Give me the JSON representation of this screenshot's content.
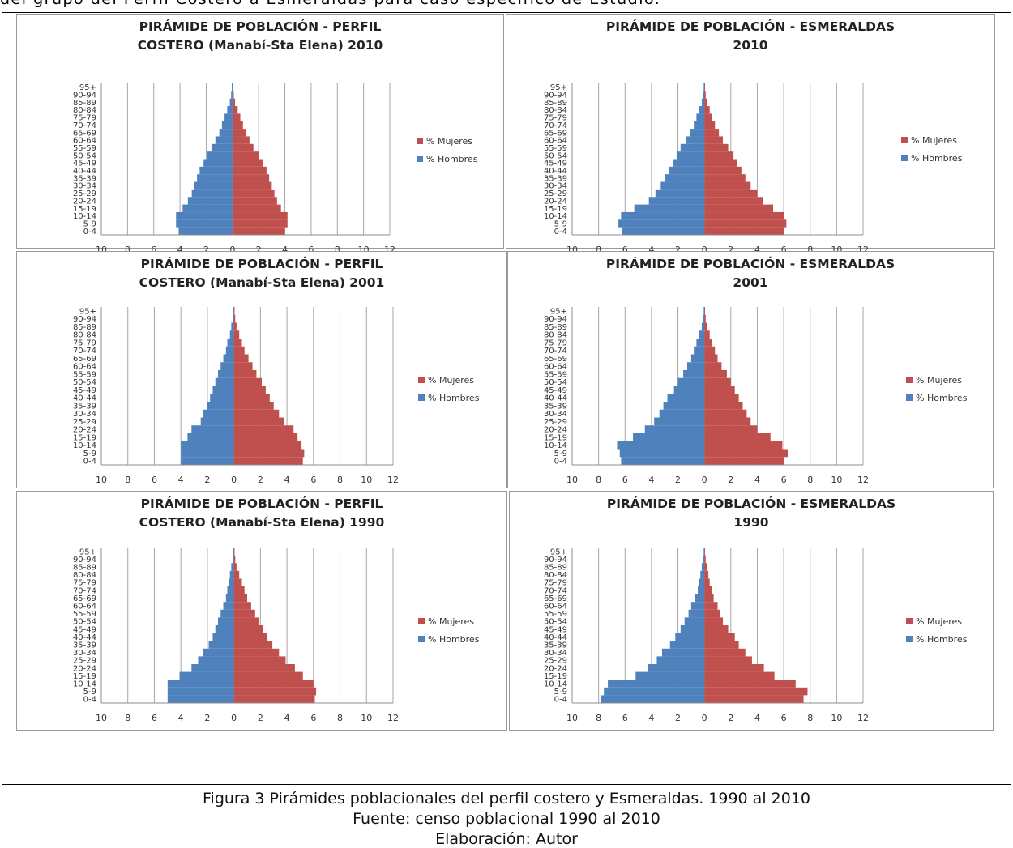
{
  "header_fragment": "del grupo del Perfil Costero a Esmeraldas para caso específico de Estudio.",
  "caption": {
    "figure": "Figura 3 Pirámides poblacionales del perfil costero y Esmeraldas. 1990 al 2010",
    "source": "Fuente: censo poblacional 1990 al 2010",
    "author": "Elaboración: Autor"
  },
  "colors": {
    "mujeres": "#c0504d",
    "hombres": "#4f81bd",
    "grid": "#a6a6a6"
  },
  "chart_data": [
    {
      "type": "bar",
      "title_line1": "PIRÁMIDE DE POBLACIÓN  -  PERFIL",
      "title_line2": "COSTERO (Manabí-Sta Elena) 2010",
      "categories": [
        "0-4",
        "5-9",
        "10-14",
        "15-19",
        "20-24",
        "25-29",
        "30-34",
        "35-39",
        "40-44",
        "45-49",
        "50-54",
        "55-59",
        "60-64",
        "65-69",
        "70-74",
        "75-79",
        "80-84",
        "85-89",
        "90-94",
        "95+"
      ],
      "x_ticks": [
        "10",
        "8",
        "6",
        "4",
        "2",
        "0",
        "2",
        "4",
        "6",
        "8",
        "10",
        "12"
      ],
      "xlim": [
        -10,
        12
      ],
      "grid": true,
      "legend_position": "right",
      "series": [
        {
          "name": "% Mujeres",
          "values": [
            4.0,
            4.2,
            4.2,
            3.7,
            3.4,
            3.2,
            3.0,
            2.8,
            2.6,
            2.3,
            2.0,
            1.6,
            1.3,
            1.0,
            0.8,
            0.6,
            0.4,
            0.2,
            0.1,
            0.05
          ]
        },
        {
          "name": "% Hombres",
          "values": [
            4.1,
            4.3,
            4.3,
            3.8,
            3.4,
            3.1,
            2.9,
            2.7,
            2.5,
            2.2,
            1.9,
            1.6,
            1.3,
            1.0,
            0.8,
            0.6,
            0.4,
            0.2,
            0.1,
            0.05
          ]
        }
      ]
    },
    {
      "type": "bar",
      "title_line1": "PIRÁMIDE DE POBLACIÓN - ESMERALDAS",
      "title_line2": "2010",
      "categories": [
        "0-4",
        "5-9",
        "10-14",
        "15-19",
        "20-24",
        "25-29",
        "30-34",
        "35-39",
        "40-44",
        "45-49",
        "50-54",
        "55-59",
        "60-64",
        "65-69",
        "70-74",
        "75-79",
        "80-84",
        "85-89",
        "90-94",
        "95+"
      ],
      "x_ticks": [
        "10",
        "8",
        "6",
        "4",
        "2",
        "0",
        "2",
        "4",
        "6",
        "8",
        "10",
        "12"
      ],
      "xlim": [
        -10,
        12
      ],
      "grid": true,
      "legend_position": "right",
      "series": [
        {
          "name": "% Mujeres",
          "values": [
            6.0,
            6.2,
            6.0,
            5.2,
            4.4,
            4.0,
            3.5,
            3.1,
            2.8,
            2.5,
            2.2,
            1.8,
            1.4,
            1.1,
            0.8,
            0.6,
            0.4,
            0.2,
            0.1,
            0.05
          ]
        },
        {
          "name": "% Hombres",
          "values": [
            6.2,
            6.5,
            6.3,
            5.3,
            4.2,
            3.7,
            3.3,
            3.0,
            2.7,
            2.4,
            2.1,
            1.8,
            1.4,
            1.1,
            0.8,
            0.6,
            0.4,
            0.2,
            0.1,
            0.05
          ]
        }
      ]
    },
    {
      "type": "bar",
      "title_line1": "PIRÁMIDE DE POBLACIÓN  -  PERFIL",
      "title_line2": "COSTERO (Manabí-Sta Elena) 2001",
      "categories": [
        "0-4",
        "5-9",
        "10-14",
        "15-19",
        "20-24",
        "25-29",
        "30-34",
        "35-39",
        "40-44",
        "45-49",
        "50-54",
        "55-59",
        "60-64",
        "65-69",
        "70-74",
        "75-79",
        "80-84",
        "85-89",
        "90-94",
        "95+"
      ],
      "x_ticks": [
        "10",
        "8",
        "6",
        "4",
        "2",
        "0",
        "2",
        "4",
        "6",
        "8",
        "10",
        "12"
      ],
      "xlim": [
        -10,
        12
      ],
      "grid": true,
      "legend_position": "right",
      "series": [
        {
          "name": "% Mujeres",
          "values": [
            5.2,
            5.3,
            5.1,
            4.8,
            4.5,
            3.8,
            3.4,
            3.0,
            2.7,
            2.4,
            2.1,
            1.7,
            1.4,
            1.1,
            0.8,
            0.6,
            0.4,
            0.2,
            0.1,
            0.05
          ]
        },
        {
          "name": "% Hombres",
          "values": [
            4.0,
            4.0,
            4.0,
            3.5,
            3.2,
            2.5,
            2.3,
            2.0,
            1.8,
            1.6,
            1.4,
            1.2,
            1.0,
            0.8,
            0.6,
            0.5,
            0.3,
            0.2,
            0.1,
            0.05
          ]
        }
      ]
    },
    {
      "type": "bar",
      "title_line1": "PIRÁMIDE DE POBLACIÓN - ESMERALDAS",
      "title_line2": "2001",
      "categories": [
        "0-4",
        "5-9",
        "10-14",
        "15-19",
        "20-24",
        "25-29",
        "30-34",
        "35-39",
        "40-44",
        "45-49",
        "50-54",
        "55-59",
        "60-64",
        "65-69",
        "70-74",
        "75-79",
        "80-84",
        "85-89",
        "90-94",
        "95+"
      ],
      "x_ticks": [
        "10",
        "8",
        "6",
        "4",
        "2",
        "0",
        "2",
        "4",
        "6",
        "8",
        "10",
        "12"
      ],
      "xlim": [
        -10,
        12
      ],
      "grid": true,
      "legend_position": "right",
      "series": [
        {
          "name": "% Mujeres",
          "values": [
            6.0,
            6.3,
            5.9,
            5.0,
            4.0,
            3.5,
            3.2,
            2.9,
            2.6,
            2.3,
            2.0,
            1.7,
            1.3,
            1.0,
            0.8,
            0.6,
            0.4,
            0.2,
            0.1,
            0.05
          ]
        },
        {
          "name": "% Hombres",
          "values": [
            6.3,
            6.4,
            6.6,
            5.4,
            4.5,
            3.8,
            3.4,
            3.1,
            2.8,
            2.3,
            2.0,
            1.6,
            1.3,
            1.0,
            0.8,
            0.6,
            0.4,
            0.2,
            0.1,
            0.05
          ]
        }
      ]
    },
    {
      "type": "bar",
      "title_line1": "PIRÁMIDE DE POBLACIÓN  -  PERFIL",
      "title_line2": "COSTERO (Manabí-Sta Elena) 1990",
      "categories": [
        "0-4",
        "5-9",
        "10-14",
        "15-19",
        "20-24",
        "25-29",
        "30-34",
        "35-39",
        "40-44",
        "45-49",
        "50-54",
        "55-59",
        "60-64",
        "65-69",
        "70-74",
        "75-79",
        "80-84",
        "85-89",
        "90-94",
        "95+"
      ],
      "x_ticks": [
        "10",
        "8",
        "6",
        "4",
        "2",
        "0",
        "2",
        "4",
        "6",
        "8",
        "10",
        "12"
      ],
      "xlim": [
        -10,
        12
      ],
      "grid": true,
      "legend_position": "right",
      "series": [
        {
          "name": "% Mujeres",
          "values": [
            6.1,
            6.2,
            6.0,
            5.2,
            4.6,
            3.9,
            3.4,
            2.9,
            2.5,
            2.2,
            1.9,
            1.6,
            1.3,
            1.0,
            0.8,
            0.6,
            0.4,
            0.2,
            0.1,
            0.05
          ]
        },
        {
          "name": "% Hombres",
          "values": [
            5.0,
            5.0,
            5.0,
            4.1,
            3.2,
            2.7,
            2.3,
            1.9,
            1.6,
            1.4,
            1.2,
            1.0,
            0.8,
            0.6,
            0.5,
            0.4,
            0.3,
            0.2,
            0.1,
            0.05
          ]
        }
      ]
    },
    {
      "type": "bar",
      "title_line1": "PIRÁMIDE DE POBLACIÓN - ESMERALDAS",
      "title_line2": "1990",
      "categories": [
        "0-4",
        "5-9",
        "10-14",
        "15-19",
        "20-24",
        "25-29",
        "30-34",
        "35-39",
        "40-44",
        "45-49",
        "50-54",
        "55-59",
        "60-64",
        "65-69",
        "70-74",
        "75-79",
        "80-84",
        "85-89",
        "90-94",
        "95+"
      ],
      "x_ticks": [
        "10",
        "8",
        "6",
        "4",
        "2",
        "0",
        "2",
        "4",
        "6",
        "8",
        "10",
        "12"
      ],
      "xlim": [
        -10,
        12
      ],
      "grid": true,
      "legend_position": "right",
      "series": [
        {
          "name": "% Mujeres",
          "values": [
            7.5,
            7.8,
            6.9,
            5.3,
            4.5,
            3.6,
            3.1,
            2.6,
            2.3,
            1.8,
            1.4,
            1.2,
            1.0,
            0.7,
            0.6,
            0.4,
            0.3,
            0.2,
            0.1,
            0.05
          ]
        },
        {
          "name": "% Hombres",
          "values": [
            7.8,
            7.6,
            7.3,
            5.2,
            4.3,
            3.6,
            3.2,
            2.6,
            2.2,
            1.8,
            1.5,
            1.2,
            1.0,
            0.7,
            0.5,
            0.4,
            0.3,
            0.2,
            0.1,
            0.05
          ]
        }
      ]
    }
  ]
}
